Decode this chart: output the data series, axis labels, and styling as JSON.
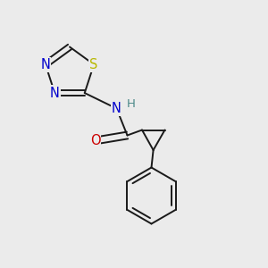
{
  "background_color": "#ebebeb",
  "atoms": {
    "S": {
      "color": "#b8b800",
      "fontsize": 10.5
    },
    "N": {
      "color": "#0000cc",
      "fontsize": 10.5
    },
    "O": {
      "color": "#cc0000",
      "fontsize": 10.5
    },
    "H": {
      "color": "#4a8888",
      "fontsize": 9.5
    }
  },
  "bond_color": "#1a1a1a",
  "bond_width": 1.4,
  "dbo": 0.013
}
